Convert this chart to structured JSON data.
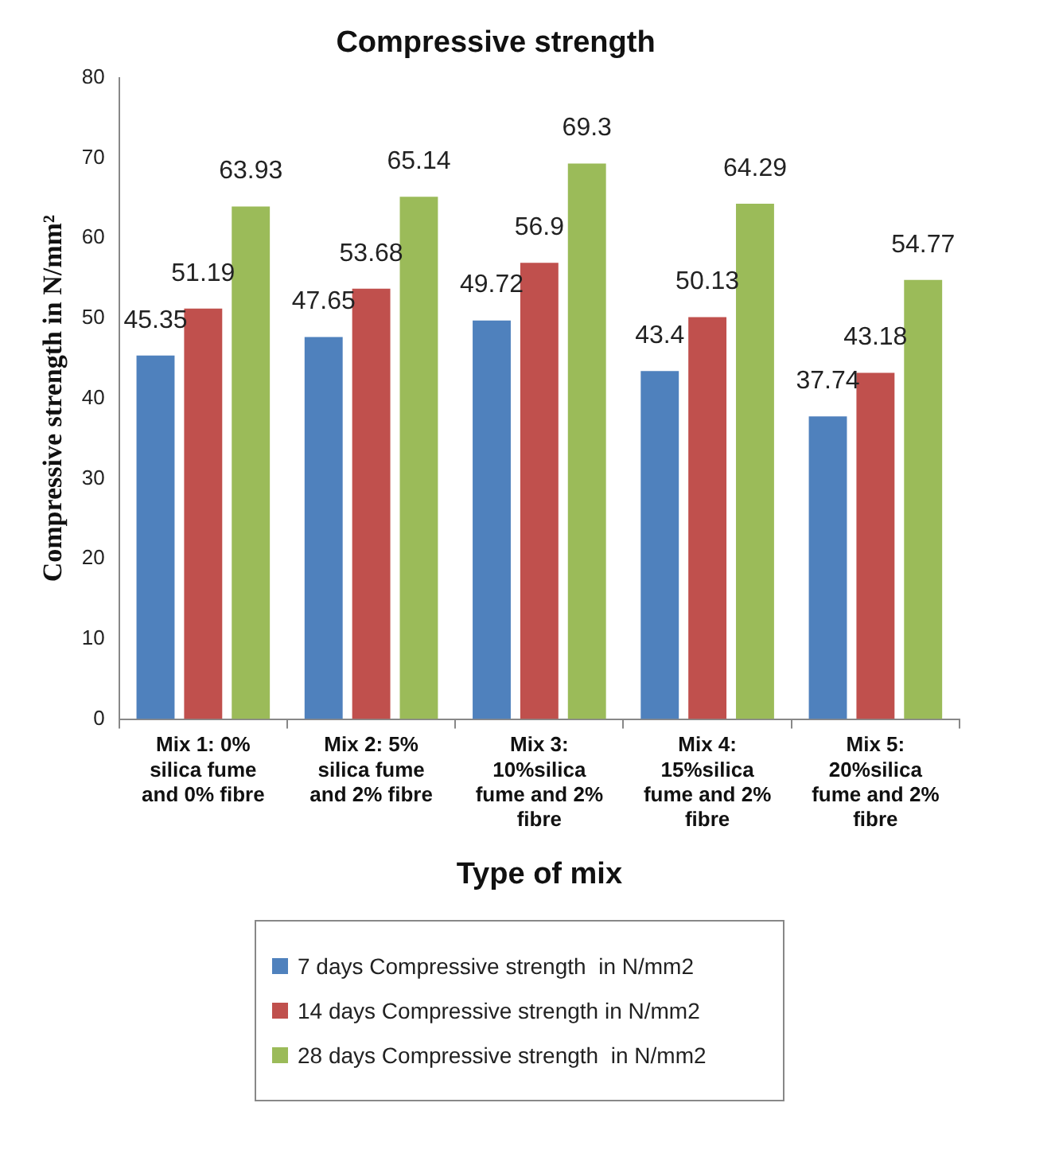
{
  "chart_data": {
    "type": "bar",
    "title": "Compressive strength",
    "xlabel": "Type of mix",
    "ylabel": "Compressive strength in N/mm²",
    "categories": [
      "Mix 1: 0% silica fume and 0% fibre",
      "Mix 2: 5% silica fume and 2% fibre",
      "Mix 3: 10%silica fume and 2% fibre",
      "Mix 4: 15%silica fume and 2% fibre",
      "Mix 5: 20%silica fume and 2% fibre"
    ],
    "series": [
      {
        "name": "7 days Compressive strength  in N/mm2",
        "color": "#4f81bd",
        "values": [
          45.35,
          47.65,
          49.72,
          43.4,
          37.74
        ]
      },
      {
        "name": "14 days Compressive strength in N/mm2",
        "color": "#c0504d",
        "values": [
          51.19,
          53.68,
          56.9,
          50.13,
          43.18
        ]
      },
      {
        "name": "28 days Compressive strength  in N/mm2",
        "color": "#9bbb59",
        "values": [
          63.93,
          65.14,
          69.3,
          64.29,
          54.77
        ]
      }
    ],
    "ylim": [
      0,
      80
    ],
    "yticks": [
      0,
      10,
      20,
      30,
      40,
      50,
      60,
      70,
      80
    ],
    "grid": false,
    "legend": "bottom",
    "data_labels": true
  }
}
